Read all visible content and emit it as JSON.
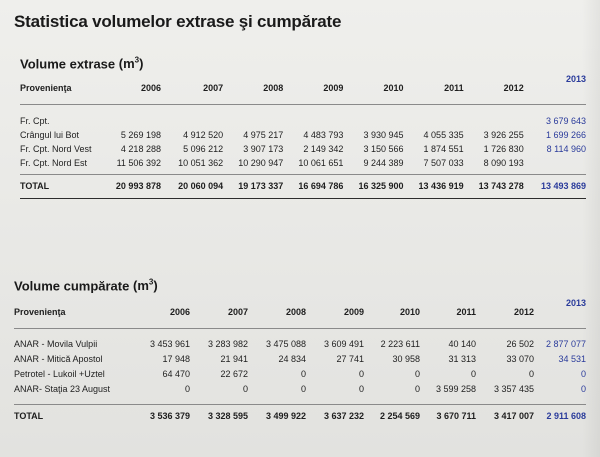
{
  "title": "Statistica volumelor extrase şi cumpărate",
  "extracted": {
    "section_title": "Volume extrase",
    "unit": "(m",
    "unit_sup": "3",
    "unit_close": ")",
    "col_label": "Provenienţa",
    "years": [
      "2006",
      "2007",
      "2008",
      "2009",
      "2010",
      "2011",
      "2012",
      "2013"
    ],
    "rows": [
      {
        "label": "Fr. Cpt.",
        "values": [
          "",
          "",
          "",
          "",
          "",
          "",
          "",
          "3 679 643"
        ]
      },
      {
        "label": "Crângul lui Bot",
        "values": [
          "5 269 198",
          "4 912 520",
          "4 975 217",
          "4 483 793",
          "3 930 945",
          "4 055 335",
          "3 926 255",
          "1 699 266"
        ]
      },
      {
        "label": "Fr. Cpt. Nord Vest",
        "values": [
          "4 218 288",
          "5 096 212",
          "3 907 173",
          "2 149 342",
          "3 150 566",
          "1 874 551",
          "1 726 830",
          "8 114 960"
        ]
      },
      {
        "label": "Fr. Cpt. Nord Est",
        "values": [
          "11 506 392",
          "10 051 362",
          "10 290 947",
          "10 061 651",
          "9 244 389",
          "7 507 033",
          "8 090 193",
          ""
        ]
      }
    ],
    "total": {
      "label": "TOTAL",
      "values": [
        "20 993 878",
        "20 060 094",
        "19 173 337",
        "16 694 786",
        "16 325 900",
        "13 436 919",
        "13 743 278",
        "13 493 869"
      ]
    }
  },
  "purchased": {
    "section_title": "Volume cumpărate",
    "unit": "(m",
    "unit_sup": "3",
    "unit_close": ")",
    "col_label": "Provenienţa",
    "years": [
      "2006",
      "2007",
      "2008",
      "2009",
      "2010",
      "2011",
      "2012",
      "2013"
    ],
    "rows": [
      {
        "label": "ANAR - Movila Vulpii",
        "values": [
          "3 453 961",
          "3 283 982",
          "3 475 088",
          "3 609 491",
          "2 223 611",
          "40 140",
          "26 502",
          "2 877 077"
        ]
      },
      {
        "label": "ANAR - Mitică Apostol",
        "values": [
          "17 948",
          "21 941",
          "24 834",
          "27 741",
          "30 958",
          "31 313",
          "33 070",
          "34 531"
        ]
      },
      {
        "label": "Petrotel - Lukoil +Uztel",
        "values": [
          "64 470",
          "22 672",
          "0",
          "0",
          "0",
          "0",
          "0",
          "0"
        ]
      },
      {
        "label": "ANAR- Staţia 23 August",
        "values": [
          "0",
          "0",
          "0",
          "0",
          "0",
          "3 599 258",
          "3 357 435",
          "0"
        ]
      }
    ],
    "total": {
      "label": "TOTAL",
      "values": [
        "3 536 379",
        "3 328 595",
        "3 499 922",
        "3 637 232",
        "2 254 569",
        "3 670 711",
        "3 417 007",
        "2 911 608"
      ]
    }
  }
}
